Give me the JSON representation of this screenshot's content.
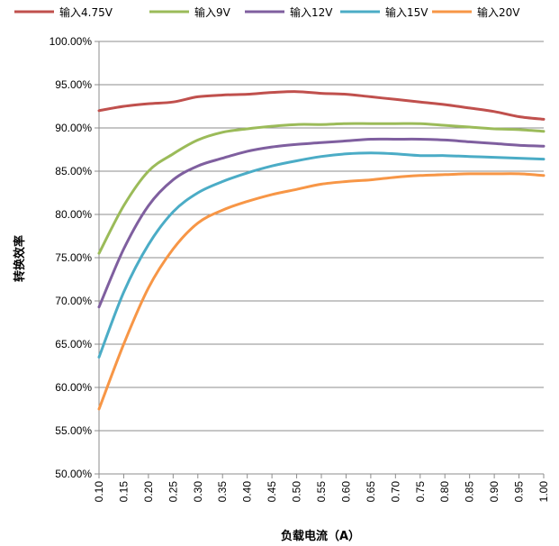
{
  "chart_data": {
    "type": "line",
    "title": "",
    "xlabel": "负载电流（A）",
    "ylabel": "转换效率",
    "xlim": [
      0.1,
      1.0
    ],
    "ylim": [
      50,
      100
    ],
    "x_ticks": [
      "0.10",
      "0.15",
      "0.20",
      "0.25",
      "0.30",
      "0.35",
      "0.40",
      "0.45",
      "0.50",
      "0.55",
      "0.60",
      "0.65",
      "0.70",
      "0.75",
      "0.80",
      "0.85",
      "0.90",
      "0.95",
      "1.00"
    ],
    "y_ticks": [
      "50.00%",
      "55.00%",
      "60.00%",
      "65.00%",
      "70.00%",
      "75.00%",
      "80.00%",
      "85.00%",
      "90.00%",
      "95.00%",
      "100.00%"
    ],
    "grid": "horizontal",
    "legend_position": "top",
    "x": [
      0.1,
      0.15,
      0.2,
      0.25,
      0.3,
      0.35,
      0.4,
      0.45,
      0.5,
      0.55,
      0.6,
      0.65,
      0.7,
      0.75,
      0.8,
      0.85,
      0.9,
      0.95,
      1.0
    ],
    "series": [
      {
        "name": "输入4.75V",
        "color": "#c0504d",
        "values": [
          92.0,
          92.5,
          92.8,
          93.0,
          93.6,
          93.8,
          93.9,
          94.1,
          94.2,
          94.0,
          93.9,
          93.6,
          93.3,
          93.0,
          92.7,
          92.3,
          91.9,
          91.3,
          91.0
        ]
      },
      {
        "name": "输入9V",
        "color": "#9bbb59",
        "values": [
          75.5,
          81.0,
          85.0,
          87.0,
          88.6,
          89.5,
          89.9,
          90.2,
          90.4,
          90.4,
          90.5,
          90.5,
          90.5,
          90.5,
          90.3,
          90.1,
          89.9,
          89.8,
          89.6
        ]
      },
      {
        "name": "输入12V",
        "color": "#7f5f9f",
        "values": [
          69.3,
          76.0,
          81.0,
          84.0,
          85.6,
          86.5,
          87.3,
          87.8,
          88.1,
          88.3,
          88.5,
          88.7,
          88.7,
          88.7,
          88.6,
          88.4,
          88.2,
          88.0,
          87.9
        ]
      },
      {
        "name": "输入15V",
        "color": "#4bacc6",
        "values": [
          63.5,
          71.0,
          76.5,
          80.3,
          82.5,
          83.8,
          84.8,
          85.6,
          86.2,
          86.7,
          87.0,
          87.1,
          87.0,
          86.8,
          86.8,
          86.7,
          86.6,
          86.5,
          86.4
        ]
      },
      {
        "name": "输入20V",
        "color": "#f79646",
        "values": [
          57.5,
          65.0,
          71.5,
          76.0,
          79.0,
          80.5,
          81.5,
          82.3,
          82.9,
          83.5,
          83.8,
          84.0,
          84.3,
          84.5,
          84.6,
          84.7,
          84.7,
          84.7,
          84.5
        ]
      }
    ]
  }
}
